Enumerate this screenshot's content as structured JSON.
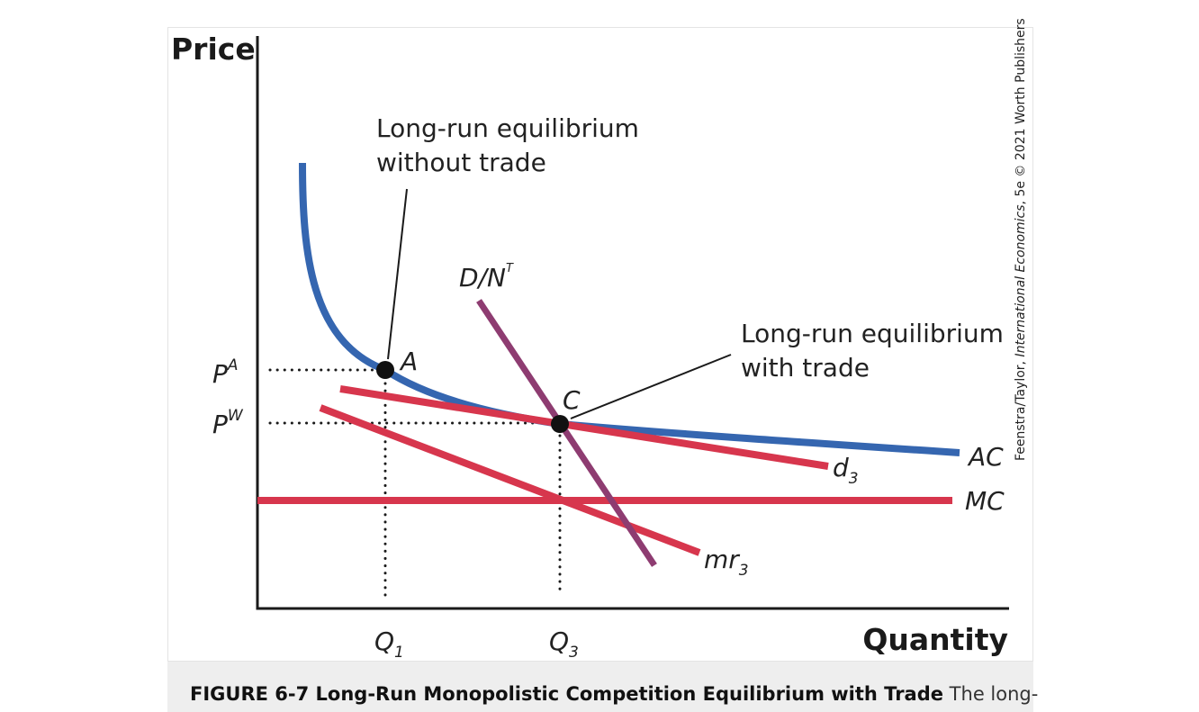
{
  "axes": {
    "y_title": "Price",
    "x_title": "Quantity"
  },
  "annotations": {
    "no_trade": [
      "Long-run equilibrium",
      "without trade"
    ],
    "with_trade": [
      "Long-run equilibrium",
      "with trade"
    ]
  },
  "points": {
    "a": "A",
    "c": "C"
  },
  "price_labels": {
    "pa": {
      "base": "P",
      "sup": "A"
    },
    "pw": {
      "base": "P",
      "sup": "W"
    }
  },
  "quantity_labels": {
    "q1": {
      "base": "Q",
      "sub": "1"
    },
    "q3": {
      "base": "Q",
      "sub": "3"
    }
  },
  "curves": {
    "ac": {
      "label": "AC",
      "color": "#3566b0"
    },
    "mc": {
      "label": "MC",
      "color": "#d7364d"
    },
    "d3": {
      "base": "d",
      "sub": "3",
      "color": "#d7364d"
    },
    "mr3": {
      "base": "mr",
      "sub": "3",
      "color": "#d7364d"
    },
    "dn": {
      "base": "D/N",
      "sup": "T",
      "color": "#8e3c71"
    }
  },
  "credit": {
    "prefix": "Feenstra/Taylor, ",
    "book": "International Economics",
    "suffix": ", 5e © 2021 Worth Publishers"
  },
  "caption": {
    "title": "FIGURE 6-7 Long-Run Monopolistic Competition Equilibrium with Trade",
    "body": " The long-"
  }
}
